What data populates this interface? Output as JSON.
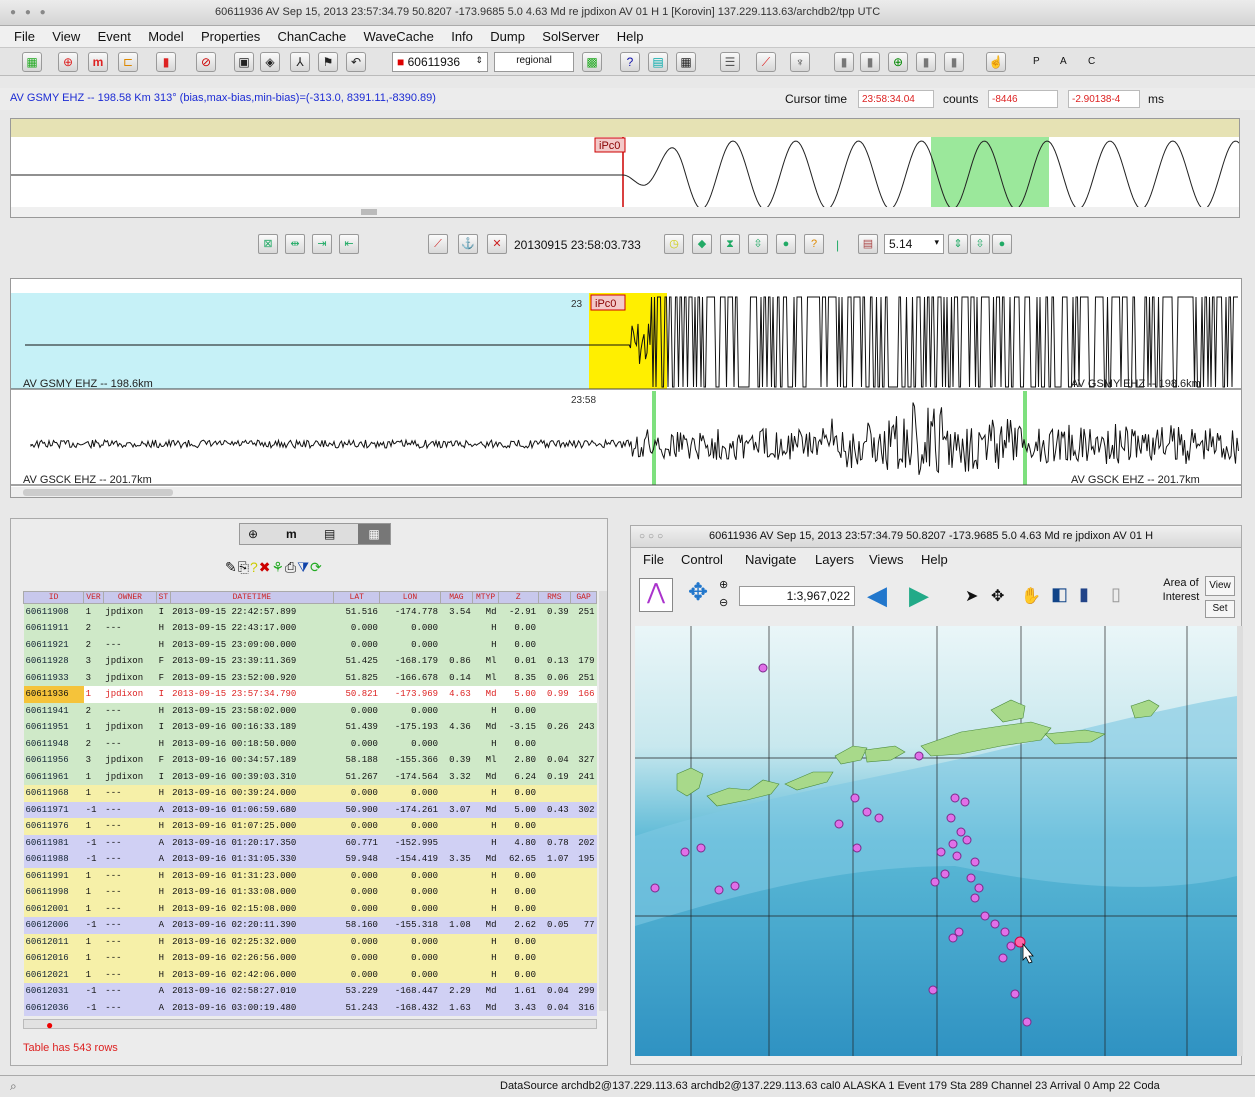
{
  "window": {
    "title": "60611936 AV Sep 15, 2013 23:57:34.79  50.8207 -173.9685  5.0 4.63 Md re jpdixon AV 01 H   1 [Korovin]    137.229.113.63/archdb2/tpp UTC"
  },
  "menu": [
    "File",
    "View",
    "Event",
    "Model",
    "Properties",
    "ChanCache",
    "WaveCache",
    "Info",
    "Dump",
    "SolServer",
    "Help"
  ],
  "toolbar": {
    "event_id": "60611936",
    "region": "regional",
    "flags": [
      "P",
      "A",
      "C"
    ]
  },
  "info": {
    "channel_line": "AV GSMY  EHZ --  198.58 Km 313° (bias,max-bias,min-bias)=(-313.0, 8391.11,-8390.89)",
    "cursor_time_label": "Cursor time",
    "cursor_time_value": "23:58:34.04",
    "counts_label": "counts",
    "counts_value": "-8446",
    "ms_value": "-2.90138-4",
    "ms_label": "ms"
  },
  "zoom": {
    "pick_label": "iPc0"
  },
  "midbar": {
    "datetime": "20130915 23:58:03.733",
    "scale_value": "5.14"
  },
  "waveforms": {
    "trace1_label_left": "AV GSMY  EHZ -- 198.6km",
    "trace1_label_right": "AV GSMY EHZ -- 198.6km",
    "trace1_pick": "iPc0",
    "trace1_time": "23:58",
    "trace2_time": "23:58",
    "trace2_label_left": "AV GSCK  EHZ -- 201.7km",
    "trace2_label_right": "AV GSCK  EHZ -- 201.7km"
  },
  "catalog": {
    "tabs": [
      "⊕",
      "m",
      "▤",
      "▦"
    ],
    "columns": [
      "ID",
      "VER",
      "OWNER",
      "ST",
      "DATETIME",
      "LAT",
      "LON",
      "MAG",
      "MTYP",
      "Z",
      "RMS",
      "GAP"
    ],
    "rows": [
      {
        "c": [
          "60611908",
          "1",
          "jpdixon",
          "I",
          "2013-09-15 22:42:57.899",
          "51.516",
          "-174.778",
          "3.54",
          "Md",
          "-2.91",
          "0.39",
          "251"
        ],
        "color": "#cfe9c8"
      },
      {
        "c": [
          "60611911",
          "2",
          "---",
          "H",
          "2013-09-15 22:43:17.000",
          "0.000",
          "0.000",
          "",
          "H",
          "0.00",
          "",
          ""
        ],
        "color": "#cfe9c8"
      },
      {
        "c": [
          "60611921",
          "2",
          "---",
          "H",
          "2013-09-15 23:09:00.000",
          "0.000",
          "0.000",
          "",
          "H",
          "0.00",
          "",
          ""
        ],
        "color": "#cfe9c8"
      },
      {
        "c": [
          "60611928",
          "3",
          "jpdixon",
          "F",
          "2013-09-15 23:39:11.369",
          "51.425",
          "-168.179",
          "0.86",
          "Ml",
          "0.01",
          "0.13",
          "179"
        ],
        "color": "#cfe9c8"
      },
      {
        "c": [
          "60611933",
          "3",
          "jpdixon",
          "F",
          "2013-09-15 23:52:00.920",
          "51.825",
          "-166.678",
          "0.14",
          "Ml",
          "8.35",
          "0.06",
          "251"
        ],
        "color": "#cfe9c8"
      },
      {
        "c": [
          "60611936",
          "1",
          "jpdixon",
          "I",
          "2013-09-15 23:57:34.790",
          "50.821",
          "-173.969",
          "4.63",
          "Md",
          "5.00",
          "0.99",
          "166"
        ],
        "color": "#ffffff",
        "sel": true
      },
      {
        "c": [
          "60611941",
          "2",
          "---",
          "H",
          "2013-09-15 23:58:02.000",
          "0.000",
          "0.000",
          "",
          "H",
          "0.00",
          "",
          ""
        ],
        "color": "#cfe9c8"
      },
      {
        "c": [
          "60611951",
          "1",
          "jpdixon",
          "I",
          "2013-09-16 00:16:33.189",
          "51.439",
          "-175.193",
          "4.36",
          "Md",
          "-3.15",
          "0.26",
          "243"
        ],
        "color": "#cfe9c8"
      },
      {
        "c": [
          "60611948",
          "2",
          "---",
          "H",
          "2013-09-16 00:18:50.000",
          "0.000",
          "0.000",
          "",
          "H",
          "0.00",
          "",
          ""
        ],
        "color": "#cfe9c8"
      },
      {
        "c": [
          "60611956",
          "3",
          "jpdixon",
          "F",
          "2013-09-16 00:34:57.189",
          "58.188",
          "-155.366",
          "0.39",
          "Ml",
          "2.80",
          "0.04",
          "327"
        ],
        "color": "#cfe9c8"
      },
      {
        "c": [
          "60611961",
          "1",
          "jpdixon",
          "I",
          "2013-09-16 00:39:03.310",
          "51.267",
          "-174.564",
          "3.32",
          "Md",
          "6.24",
          "0.19",
          "241"
        ],
        "color": "#cfe9c8"
      },
      {
        "c": [
          "60611968",
          "1",
          "---",
          "H",
          "2013-09-16 00:39:24.000",
          "0.000",
          "0.000",
          "",
          "H",
          "0.00",
          "",
          ""
        ],
        "color": "#f6f0a8"
      },
      {
        "c": [
          "60611971",
          "-1",
          "---",
          "A",
          "2013-09-16 01:06:59.680",
          "50.900",
          "-174.261",
          "3.07",
          "Md",
          "5.00",
          "0.43",
          "302"
        ],
        "color": "#d0d0f4"
      },
      {
        "c": [
          "60611976",
          "1",
          "---",
          "H",
          "2013-09-16 01:07:25.000",
          "0.000",
          "0.000",
          "",
          "H",
          "0.00",
          "",
          ""
        ],
        "color": "#f6f0a8"
      },
      {
        "c": [
          "60611981",
          "-1",
          "---",
          "A",
          "2013-09-16 01:20:17.350",
          "60.771",
          "-152.995",
          "",
          "H",
          "4.80",
          "0.78",
          "202"
        ],
        "color": "#d0d0f4"
      },
      {
        "c": [
          "60611988",
          "-1",
          "---",
          "A",
          "2013-09-16 01:31:05.330",
          "59.948",
          "-154.419",
          "3.35",
          "Md",
          "62.65",
          "1.07",
          "195"
        ],
        "color": "#d0d0f4"
      },
      {
        "c": [
          "60611991",
          "1",
          "---",
          "H",
          "2013-09-16 01:31:23.000",
          "0.000",
          "0.000",
          "",
          "H",
          "0.00",
          "",
          ""
        ],
        "color": "#f6f0a8"
      },
      {
        "c": [
          "60611998",
          "1",
          "---",
          "H",
          "2013-09-16 01:33:08.000",
          "0.000",
          "0.000",
          "",
          "H",
          "0.00",
          "",
          ""
        ],
        "color": "#f6f0a8"
      },
      {
        "c": [
          "60612001",
          "1",
          "---",
          "H",
          "2013-09-16 02:15:08.000",
          "0.000",
          "0.000",
          "",
          "H",
          "0.00",
          "",
          ""
        ],
        "color": "#f6f0a8"
      },
      {
        "c": [
          "60612006",
          "-1",
          "---",
          "A",
          "2013-09-16 02:20:11.390",
          "58.160",
          "-155.318",
          "1.08",
          "Md",
          "2.62",
          "0.05",
          "77"
        ],
        "color": "#d0d0f4"
      },
      {
        "c": [
          "60612011",
          "1",
          "---",
          "H",
          "2013-09-16 02:25:32.000",
          "0.000",
          "0.000",
          "",
          "H",
          "0.00",
          "",
          ""
        ],
        "color": "#f6f0a8"
      },
      {
        "c": [
          "60612016",
          "1",
          "---",
          "H",
          "2013-09-16 02:26:56.000",
          "0.000",
          "0.000",
          "",
          "H",
          "0.00",
          "",
          ""
        ],
        "color": "#f6f0a8"
      },
      {
        "c": [
          "60612021",
          "1",
          "---",
          "H",
          "2013-09-16 02:42:06.000",
          "0.000",
          "0.000",
          "",
          "H",
          "0.00",
          "",
          ""
        ],
        "color": "#f6f0a8"
      },
      {
        "c": [
          "60612031",
          "-1",
          "---",
          "A",
          "2013-09-16 02:58:27.010",
          "53.229",
          "-168.447",
          "2.29",
          "Md",
          "1.61",
          "0.04",
          "299"
        ],
        "color": "#d0d0f4"
      },
      {
        "c": [
          "60612036",
          "-1",
          "---",
          "A",
          "2013-09-16 03:00:19.480",
          "51.243",
          "-168.432",
          "1.63",
          "Md",
          "3.43",
          "0.04",
          "316"
        ],
        "color": "#d0d0f4"
      }
    ],
    "footer": "Table has 543 rows"
  },
  "map": {
    "title": "60611936 AV Sep 15, 2013 23:57:34.79  50.8207 -173.9685  5.0 4.63 Md re jpdixon AV 01 H",
    "menu": [
      "File",
      "Control",
      "Navigate",
      "Layers",
      "Views",
      "Help"
    ],
    "scale": "1:3,967,022",
    "aoi_label": "Area of Interest",
    "view_btn": "View",
    "set_btn": "Set"
  },
  "status": {
    "text": "DataSource archdb2@137.229.113.63 archdb2@137.229.113.63 cal0 ALASKA 1 Event 179 Sta 289 Channel 23 Arrival 0 Amp 22 Coda"
  }
}
